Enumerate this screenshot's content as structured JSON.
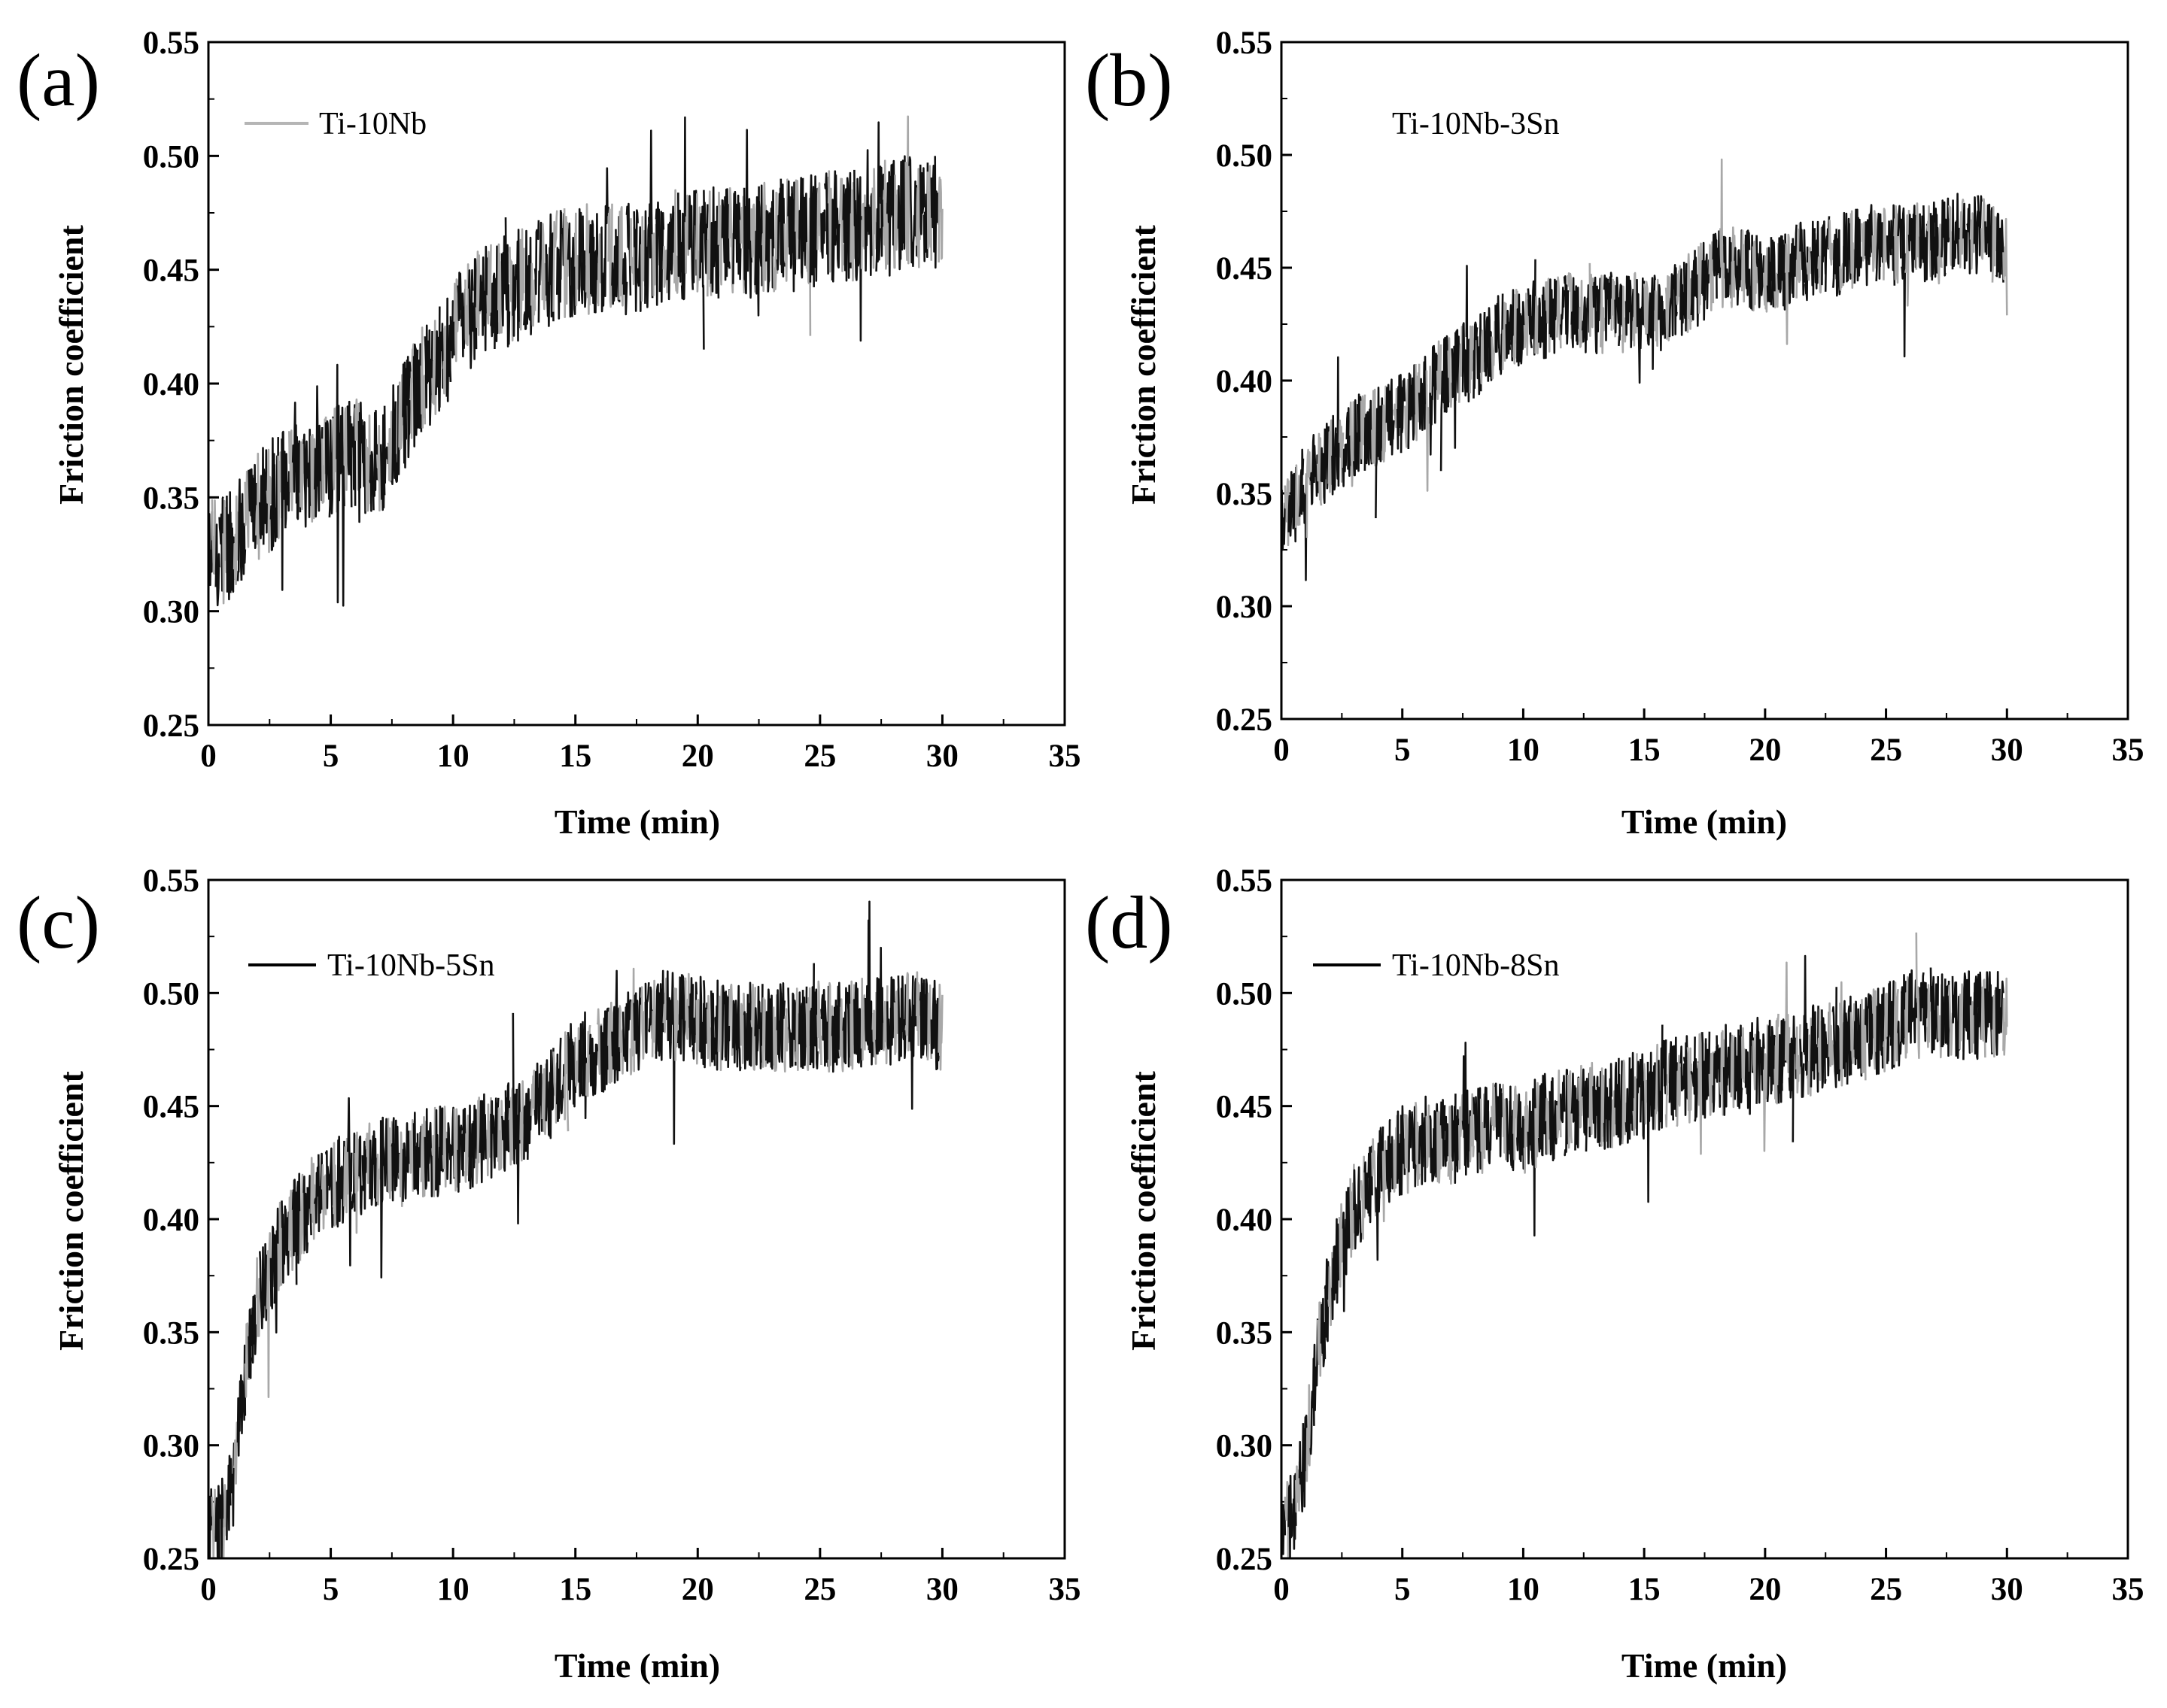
{
  "chart_data": [
    {
      "type": "line",
      "panel_label": "(a)",
      "xlabel": "Time (min)",
      "ylabel": "Friction coefficient",
      "xlim": [
        0,
        35
      ],
      "ylim": [
        0.25,
        0.55
      ],
      "xticks": [
        "0",
        "5",
        "10",
        "15",
        "20",
        "25",
        "30",
        "35"
      ],
      "yticks": [
        "0.25",
        "0.30",
        "0.35",
        "0.40",
        "0.45",
        "0.50",
        "0.55"
      ],
      "legend": {
        "label": "Ti-10Nb",
        "location": "top-left",
        "color": "#b5b5b5",
        "shows_line": true
      },
      "series": [
        {
          "name": "Ti-10Nb",
          "x": [
            0,
            1,
            2,
            3,
            4,
            5,
            6,
            7,
            8,
            9,
            10,
            11,
            12,
            13,
            14,
            15,
            16,
            17,
            18,
            19,
            20,
            21,
            22,
            23,
            24,
            25,
            26,
            27,
            28,
            29,
            30
          ],
          "y": [
            0.325,
            0.33,
            0.345,
            0.355,
            0.36,
            0.365,
            0.37,
            0.365,
            0.385,
            0.405,
            0.42,
            0.435,
            0.44,
            0.445,
            0.45,
            0.455,
            0.455,
            0.455,
            0.455,
            0.46,
            0.46,
            0.462,
            0.462,
            0.465,
            0.465,
            0.468,
            0.47,
            0.47,
            0.475,
            0.475,
            0.475
          ],
          "noise": 0.025
        }
      ]
    },
    {
      "type": "line",
      "panel_label": "(b)",
      "xlabel": "Time (min)",
      "ylabel": "Friction coefficient",
      "xlim": [
        0,
        35
      ],
      "ylim": [
        0.25,
        0.55
      ],
      "xticks": [
        "0",
        "5",
        "10",
        "15",
        "20",
        "25",
        "30",
        "35"
      ],
      "yticks": [
        "0.25",
        "0.30",
        "0.35",
        "0.40",
        "0.45",
        "0.50",
        "0.55"
      ],
      "legend": {
        "label": "Ti-10Nb-3Sn",
        "location": "top-left",
        "color": "#000000",
        "shows_line": false
      },
      "series": [
        {
          "name": "Ti-10Nb-3Sn",
          "x": [
            0,
            1,
            2,
            3,
            4,
            5,
            6,
            7,
            8,
            9,
            10,
            11,
            12,
            13,
            14,
            15,
            16,
            17,
            18,
            19,
            20,
            21,
            22,
            23,
            24,
            25,
            26,
            27,
            28,
            29,
            30
          ],
          "y": [
            0.335,
            0.355,
            0.365,
            0.375,
            0.38,
            0.385,
            0.395,
            0.405,
            0.41,
            0.42,
            0.425,
            0.428,
            0.43,
            0.43,
            0.43,
            0.43,
            0.432,
            0.44,
            0.45,
            0.45,
            0.445,
            0.45,
            0.455,
            0.455,
            0.46,
            0.46,
            0.46,
            0.462,
            0.465,
            0.465,
            0.455
          ],
          "noise": 0.018
        }
      ]
    },
    {
      "type": "line",
      "panel_label": "(c)",
      "xlabel": "Time (min)",
      "ylabel": "Friction coefficient",
      "xlim": [
        0,
        35
      ],
      "ylim": [
        0.25,
        0.55
      ],
      "xticks": [
        "0",
        "5",
        "10",
        "15",
        "20",
        "25",
        "30",
        "35"
      ],
      "yticks": [
        "0.25",
        "0.30",
        "0.35",
        "0.40",
        "0.45",
        "0.50",
        "0.55"
      ],
      "legend": {
        "label": "Ti-10Nb-5Sn",
        "location": "top-left",
        "color": "#000000",
        "shows_line": true
      },
      "series": [
        {
          "name": "Ti-10Nb-5Sn",
          "x": [
            0,
            0.5,
            1,
            1.5,
            2,
            3,
            4,
            5,
            6,
            7,
            8,
            9,
            10,
            11,
            12,
            13,
            14,
            15,
            16,
            17,
            18,
            19,
            20,
            21,
            22,
            23,
            24,
            25,
            26,
            27,
            28,
            29,
            30
          ],
          "y": [
            0.26,
            0.265,
            0.28,
            0.33,
            0.365,
            0.39,
            0.405,
            0.415,
            0.42,
            0.425,
            0.425,
            0.43,
            0.43,
            0.435,
            0.44,
            0.445,
            0.455,
            0.47,
            0.475,
            0.48,
            0.49,
            0.49,
            0.488,
            0.485,
            0.485,
            0.485,
            0.485,
            0.485,
            0.485,
            0.487,
            0.488,
            0.49,
            0.485
          ],
          "noise": 0.02
        }
      ]
    },
    {
      "type": "line",
      "panel_label": "(d)",
      "xlabel": "Time (min)",
      "ylabel": "Friction coefficient",
      "xlim": [
        0,
        35
      ],
      "ylim": [
        0.25,
        0.55
      ],
      "xticks": [
        "0",
        "5",
        "10",
        "15",
        "20",
        "25",
        "30",
        "35"
      ],
      "yticks": [
        "0.25",
        "0.30",
        "0.35",
        "0.40",
        "0.45",
        "0.50",
        "0.55"
      ],
      "legend": {
        "label": "Ti-10Nb-8Sn",
        "location": "top-left",
        "color": "#000000",
        "shows_line": true
      },
      "series": [
        {
          "name": "Ti-10Nb-8Sn",
          "x": [
            0,
            0.5,
            1,
            1.5,
            2,
            3,
            4,
            5,
            6,
            7,
            8,
            9,
            10,
            11,
            12,
            13,
            14,
            15,
            16,
            17,
            18,
            19,
            20,
            21,
            22,
            23,
            24,
            25,
            26,
            27,
            28,
            29,
            30
          ],
          "y": [
            0.26,
            0.27,
            0.295,
            0.34,
            0.37,
            0.405,
            0.42,
            0.43,
            0.435,
            0.435,
            0.44,
            0.44,
            0.44,
            0.445,
            0.447,
            0.45,
            0.452,
            0.455,
            0.46,
            0.462,
            0.465,
            0.468,
            0.47,
            0.472,
            0.475,
            0.478,
            0.48,
            0.485,
            0.49,
            0.492,
            0.49,
            0.49,
            0.49
          ],
          "noise": 0.02
        }
      ]
    }
  ]
}
